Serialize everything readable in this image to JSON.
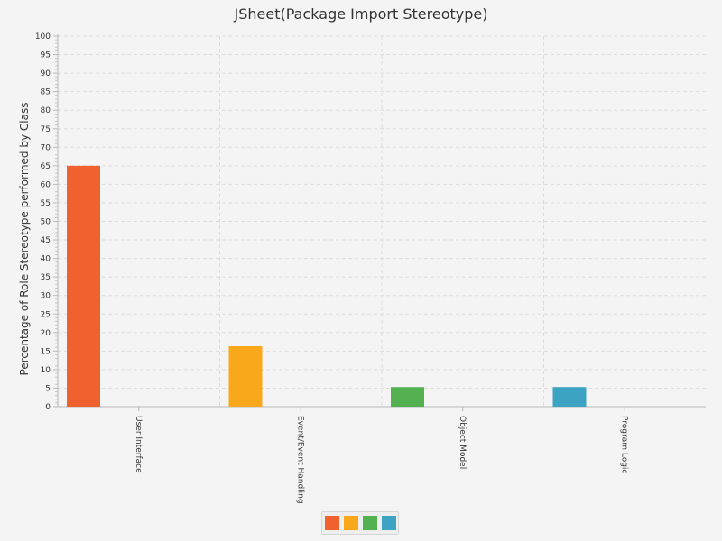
{
  "chart_data": {
    "type": "bar",
    "title": "JSheet(Package Import Stereotype)",
    "xlabel": "",
    "ylabel": "Percentage of Role Stereotype performed by Class",
    "ylim": [
      0,
      100
    ],
    "y_major_ticks": [
      0,
      5,
      10,
      15,
      20,
      25,
      30,
      35,
      40,
      45,
      50,
      55,
      60,
      65,
      70,
      75,
      80,
      85,
      90,
      95,
      100
    ],
    "grid": true,
    "legend_position": "bottom",
    "categories": [
      "User Interface",
      "Event/Event Handling",
      "Object Model",
      "Program Logic"
    ],
    "values": [
      65,
      16.3,
      5.3,
      5.3
    ],
    "colors": [
      "#f06130",
      "#f9a71b",
      "#53b152",
      "#3ca3c3"
    ]
  }
}
